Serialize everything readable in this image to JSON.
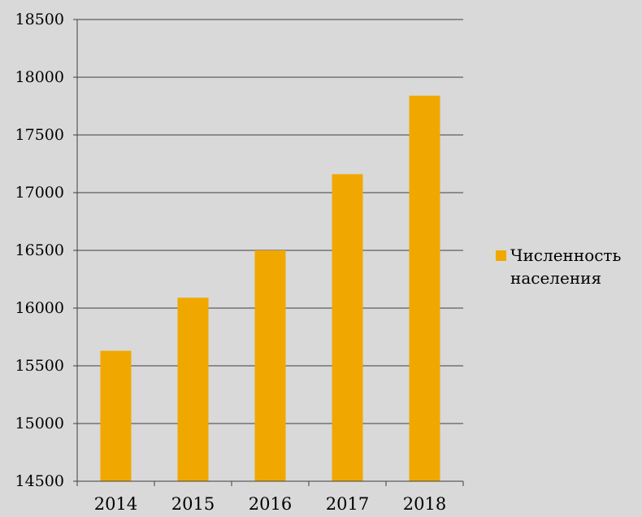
{
  "chart_data": {
    "type": "bar",
    "categories": [
      "2014",
      "2015",
      "2016",
      "2017",
      "2018"
    ],
    "series": [
      {
        "name": "Численность населения",
        "values": [
          15630,
          16090,
          16500,
          17160,
          17840
        ],
        "color": "#f0a800"
      }
    ],
    "y_ticks": [
      "14500",
      "15000",
      "15500",
      "16000",
      "16500",
      "17000",
      "17500",
      "18000",
      "18500"
    ],
    "ylim": [
      14500,
      18500
    ],
    "grid": true,
    "legend_position": "right"
  },
  "legend": {
    "label_line1": "Численность",
    "label_line2": "населения"
  }
}
